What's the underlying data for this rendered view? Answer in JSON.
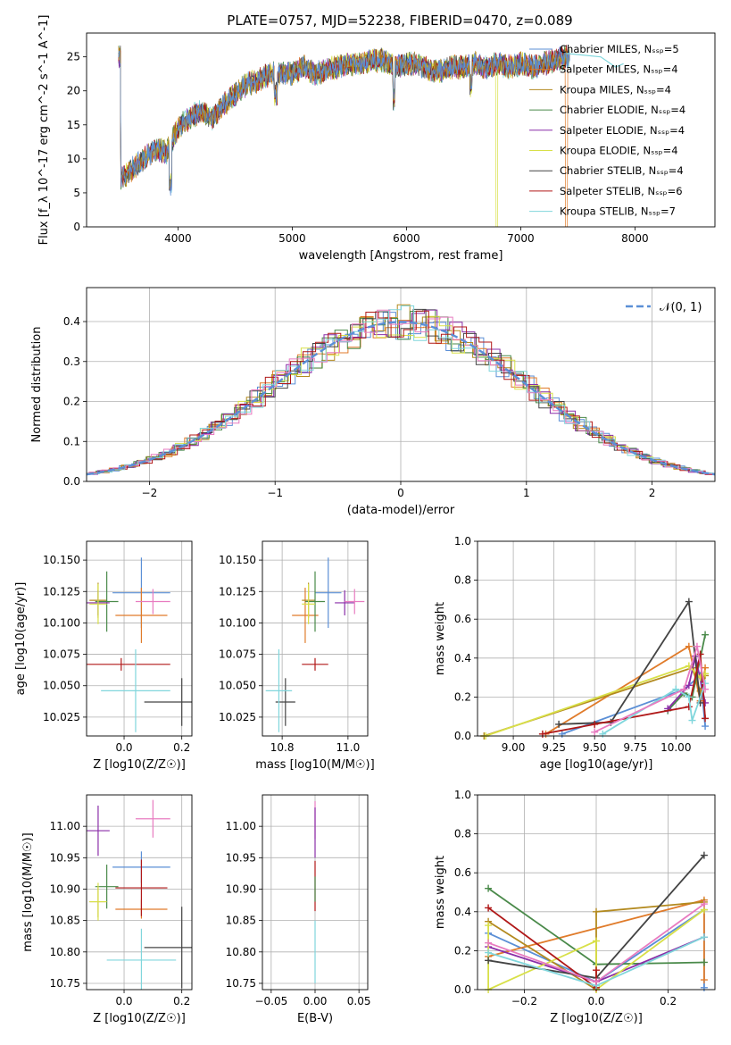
{
  "colors": {
    "chabrier_miles": "#5b8fd6",
    "salpeter_miles": "#e07b2a",
    "kroupa_miles": "#b38a1f",
    "chabrier_elodie": "#4a8a4a",
    "salpeter_elodie": "#8a2ea8",
    "kroupa_elodie": "#d8e048",
    "chabrier_stelib": "#444444",
    "salpeter_stelib": "#b01818",
    "kroupa_stelib": "#80d6dc",
    "pink": "#e87bc0",
    "gaussian": "#5b8fd6"
  },
  "chart_data": [
    {
      "id": "spectrum",
      "type": "line",
      "title": "PLATE=0757, MJD=52238, FIBERID=0470, z=0.089",
      "xlabel": "wavelength [Angstrom, rest frame]",
      "ylabel": "Flux [f_λ 10^-17 erg cm^-2 s^-1 A^-1]",
      "xlim": [
        3200,
        8700
      ],
      "ylim": [
        0,
        28.5
      ],
      "xticks": [
        4000,
        5000,
        6000,
        7000,
        8000
      ],
      "yticks": [
        0,
        5,
        10,
        15,
        20,
        25
      ],
      "legend_position": "upper-right",
      "legend": [
        {
          "label": "Chabrier MILES, N_SSP=5",
          "key": "chabrier_miles"
        },
        {
          "label": "Salpeter MILES, N_SSP=4",
          "key": "salpeter_miles"
        },
        {
          "label": "Kroupa MILES, N_SSP=4",
          "key": "kroupa_miles"
        },
        {
          "label": "Chabrier ELODIE, N_SSP=4",
          "key": "chabrier_elodie"
        },
        {
          "label": "Salpeter ELODIE, N_SSP=4",
          "key": "salpeter_elodie"
        },
        {
          "label": "Kroupa ELODIE, N_SSP=4",
          "key": "kroupa_elodie"
        },
        {
          "label": "Chabrier STELIB, N_SSP=4",
          "key": "chabrier_stelib"
        },
        {
          "label": "Salpeter STELIB, N_SSP=6",
          "key": "salpeter_stelib"
        },
        {
          "label": "Kroupa STELIB, N_SSP=7",
          "key": "kroupa_stelib"
        }
      ],
      "continuum": [
        [
          3500,
          7
        ],
        [
          3600,
          8.5
        ],
        [
          3700,
          10
        ],
        [
          3800,
          11.5
        ],
        [
          3900,
          11
        ],
        [
          4000,
          14.5
        ],
        [
          4100,
          16
        ],
        [
          4200,
          17
        ],
        [
          4300,
          16
        ],
        [
          4400,
          18
        ],
        [
          4500,
          19.5
        ],
        [
          4600,
          21
        ],
        [
          4700,
          21.5
        ],
        [
          4800,
          22.5
        ],
        [
          4900,
          22.5
        ],
        [
          5000,
          22.5
        ],
        [
          5100,
          23.5
        ],
        [
          5200,
          22.5
        ],
        [
          5300,
          23
        ],
        [
          5400,
          23.5
        ],
        [
          5500,
          24
        ],
        [
          5600,
          24
        ],
        [
          5700,
          24.5
        ],
        [
          5800,
          24.5
        ],
        [
          5900,
          23.5
        ],
        [
          6000,
          24
        ],
        [
          6100,
          24
        ],
        [
          6200,
          23
        ],
        [
          6300,
          23
        ],
        [
          6400,
          23.5
        ],
        [
          6500,
          23.5
        ],
        [
          6600,
          24
        ],
        [
          6700,
          23.5
        ],
        [
          6800,
          24
        ],
        [
          6900,
          23.5
        ],
        [
          7000,
          24
        ],
        [
          7100,
          23.5
        ],
        [
          7200,
          24
        ],
        [
          7300,
          24.5
        ],
        [
          7400,
          25
        ]
      ]
    },
    {
      "id": "residuals",
      "type": "line",
      "xlabel": "(data-model)/error",
      "ylabel": "Normed distribution",
      "xlim": [
        -2.5,
        2.5
      ],
      "ylim": [
        0,
        0.485
      ],
      "xticks": [
        -2,
        -1,
        0,
        1,
        2
      ],
      "yticks": [
        0.0,
        0.1,
        0.2,
        0.3,
        0.4
      ],
      "legend_position": "upper-right",
      "legend": [
        {
          "label": "𝒩(0, 1)",
          "key": "gaussian"
        }
      ]
    },
    {
      "id": "age-vs-Z",
      "type": "scatter",
      "xlabel": "Z [log10(Z/Z☉)]",
      "ylabel": "age  [log10(age/yr)]",
      "xlim": [
        -0.13,
        0.235
      ],
      "ylim": [
        10.01,
        10.165
      ],
      "xticks": [
        0.0,
        0.2
      ],
      "yticks": [
        10.025,
        10.05,
        10.075,
        10.1,
        10.125,
        10.15
      ],
      "points": [
        {
          "key": "chabrier_miles",
          "x": 0.06,
          "y": 10.124,
          "xerr": 0.1,
          "yerr": 0.028
        },
        {
          "key": "salpeter_miles",
          "x": 0.06,
          "y": 10.106,
          "xerr": 0.09,
          "yerr": 0.022
        },
        {
          "key": "kroupa_miles",
          "x": -0.09,
          "y": 10.118,
          "xerr": 0.03,
          "yerr": 0.014
        },
        {
          "key": "chabrier_elodie",
          "x": -0.06,
          "y": 10.117,
          "xerr": 0.04,
          "yerr": 0.024
        },
        {
          "key": "salpeter_elodie",
          "x": -0.09,
          "y": 10.116,
          "xerr": 0.04,
          "yerr": 0.01
        },
        {
          "key": "kroupa_elodie",
          "x": -0.09,
          "y": 10.115,
          "xerr": 0.03,
          "yerr": 0.016
        },
        {
          "key": "chabrier_stelib",
          "x": 0.2,
          "y": 10.037,
          "xerr": 0.13,
          "yerr": 0.019
        },
        {
          "key": "salpeter_stelib",
          "x": -0.01,
          "y": 10.067,
          "xerr": 0.17,
          "yerr": 0.005
        },
        {
          "key": "kroupa_stelib",
          "x": 0.04,
          "y": 10.046,
          "xerr": 0.12,
          "yerr": 0.033
        },
        {
          "key": "pink",
          "x": 0.1,
          "y": 10.117,
          "xerr": 0.06,
          "yerr": 0.01
        }
      ]
    },
    {
      "id": "age-vs-mass",
      "type": "scatter",
      "xlabel": "mass [log10(M/M☉)]",
      "ylabel": "",
      "xlim": [
        10.74,
        11.06
      ],
      "ylim": [
        10.01,
        10.165
      ],
      "xticks": [
        10.8,
        11.0
      ],
      "yticks": [
        10.025,
        10.05,
        10.075,
        10.1,
        10.125,
        10.15
      ],
      "points": [
        {
          "key": "chabrier_miles",
          "x": 10.94,
          "y": 10.124,
          "xerr": 0.04,
          "yerr": 0.028
        },
        {
          "key": "salpeter_miles",
          "x": 10.87,
          "y": 10.106,
          "xerr": 0.04,
          "yerr": 0.022
        },
        {
          "key": "kroupa_miles",
          "x": 10.88,
          "y": 10.118,
          "xerr": 0.02,
          "yerr": 0.014
        },
        {
          "key": "chabrier_elodie",
          "x": 10.9,
          "y": 10.117,
          "xerr": 0.03,
          "yerr": 0.024
        },
        {
          "key": "salpeter_elodie",
          "x": 10.99,
          "y": 10.116,
          "xerr": 0.03,
          "yerr": 0.01
        },
        {
          "key": "kroupa_elodie",
          "x": 10.88,
          "y": 10.115,
          "xerr": 0.02,
          "yerr": 0.016
        },
        {
          "key": "chabrier_stelib",
          "x": 10.81,
          "y": 10.037,
          "xerr": 0.03,
          "yerr": 0.019
        },
        {
          "key": "salpeter_stelib",
          "x": 10.9,
          "y": 10.067,
          "xerr": 0.04,
          "yerr": 0.005
        },
        {
          "key": "kroupa_stelib",
          "x": 10.79,
          "y": 10.046,
          "xerr": 0.04,
          "yerr": 0.033
        },
        {
          "key": "pink",
          "x": 11.02,
          "y": 10.117,
          "xerr": 0.03,
          "yerr": 0.01
        }
      ]
    },
    {
      "id": "mass-weight-vs-age",
      "type": "line",
      "xlabel": "age  [log10(age/yr)]",
      "ylabel": "mass weight",
      "xlim": [
        8.78,
        10.24
      ],
      "ylim": [
        0,
        1
      ],
      "xticks": [
        9.0,
        9.25,
        9.5,
        9.75,
        10.0
      ],
      "yticks": [
        0.0,
        0.2,
        0.4,
        0.6,
        0.8,
        1.0
      ],
      "series": [
        {
          "key": "chabrier_miles",
          "x": [
            9.3,
            10.05,
            10.15,
            10.18
          ],
          "y": [
            0.01,
            0.24,
            0.31,
            0.05
          ]
        },
        {
          "key": "salpeter_miles",
          "x": [
            9.2,
            10.08,
            10.15,
            10.18
          ],
          "y": [
            0.01,
            0.46,
            0.18,
            0.35
          ]
        },
        {
          "key": "kroupa_miles",
          "x": [
            8.82,
            10.1,
            10.15,
            10.18
          ],
          "y": [
            0.0,
            0.35,
            0.23,
            0.31
          ]
        },
        {
          "key": "chabrier_elodie",
          "x": [
            9.95,
            10.05,
            10.1,
            10.18
          ],
          "y": [
            0.13,
            0.22,
            0.2,
            0.52
          ]
        },
        {
          "key": "salpeter_elodie",
          "x": [
            9.95,
            10.08,
            10.12,
            10.18
          ],
          "y": [
            0.14,
            0.26,
            0.41,
            0.17
          ]
        },
        {
          "key": "kroupa_elodie",
          "x": [
            8.83,
            10.08,
            10.15,
            10.18
          ],
          "y": [
            0.0,
            0.36,
            0.3,
            0.32
          ]
        },
        {
          "key": "chabrier_stelib",
          "x": [
            9.28,
            9.6,
            10.08,
            10.15
          ],
          "y": [
            0.06,
            0.07,
            0.69,
            0.17
          ]
        },
        {
          "key": "salpeter_stelib",
          "x": [
            9.18,
            9.5,
            10.08,
            10.15,
            10.18
          ],
          "y": [
            0.01,
            0.06,
            0.15,
            0.42,
            0.09
          ]
        },
        {
          "key": "kroupa_stelib",
          "x": [
            9.55,
            10.0,
            10.08,
            10.1,
            10.18
          ],
          "y": [
            0.01,
            0.24,
            0.2,
            0.08,
            0.27
          ]
        },
        {
          "key": "pink",
          "x": [
            9.5,
            10.05,
            10.13,
            10.18
          ],
          "y": [
            0.02,
            0.24,
            0.46,
            0.24
          ]
        }
      ]
    },
    {
      "id": "mass-vs-Z",
      "type": "scatter",
      "xlabel": "Z [log10(Z/Z☉)]",
      "ylabel": "mass [log10(M/M☉)]",
      "xlim": [
        -0.13,
        0.235
      ],
      "ylim": [
        10.74,
        11.05
      ],
      "xticks": [
        0.0,
        0.2
      ],
      "yticks": [
        10.75,
        10.8,
        10.85,
        10.9,
        10.95,
        11.0
      ],
      "points": [
        {
          "key": "chabrier_miles",
          "x": 0.06,
          "y": 10.935,
          "xerr": 0.1,
          "yerr": 0.025
        },
        {
          "key": "salpeter_miles",
          "x": 0.06,
          "y": 10.868,
          "xerr": 0.09,
          "yerr": 0.015
        },
        {
          "key": "kroupa_miles",
          "x": -0.09,
          "y": 10.88,
          "xerr": 0.03,
          "yerr": 0.025
        },
        {
          "key": "chabrier_elodie",
          "x": -0.06,
          "y": 10.904,
          "xerr": 0.04,
          "yerr": 0.035
        },
        {
          "key": "salpeter_elodie",
          "x": -0.09,
          "y": 10.993,
          "xerr": 0.04,
          "yerr": 0.04
        },
        {
          "key": "kroupa_elodie",
          "x": -0.09,
          "y": 10.88,
          "xerr": 0.03,
          "yerr": 0.03
        },
        {
          "key": "chabrier_stelib",
          "x": 0.2,
          "y": 10.807,
          "xerr": 0.13,
          "yerr": 0.065
        },
        {
          "key": "salpeter_stelib",
          "x": 0.06,
          "y": 10.902,
          "xerr": 0.09,
          "yerr": 0.045
        },
        {
          "key": "kroupa_stelib",
          "x": 0.06,
          "y": 10.787,
          "xerr": 0.12,
          "yerr": 0.05
        },
        {
          "key": "pink",
          "x": 0.1,
          "y": 11.012,
          "xerr": 0.06,
          "yerr": 0.03
        }
      ]
    },
    {
      "id": "mass-vs-EBV",
      "type": "scatter",
      "xlabel": "E(B-V)",
      "ylabel": "",
      "xlim": [
        -0.06,
        0.06
      ],
      "ylim": [
        10.74,
        11.05
      ],
      "xticks": [
        -0.05,
        0.0,
        0.05
      ],
      "yticks": [
        10.75,
        10.8,
        10.85,
        10.9,
        10.95,
        11.0
      ],
      "points": [
        {
          "key": "pink",
          "x": 0,
          "y": 11.01,
          "xerr": 0,
          "yerr": 0.03
        },
        {
          "key": "salpeter_elodie",
          "x": 0,
          "y": 10.99,
          "xerr": 0,
          "yerr": 0.04
        },
        {
          "key": "salpeter_stelib",
          "x": 0,
          "y": 10.905,
          "xerr": 0,
          "yerr": 0.04
        },
        {
          "key": "kroupa_stelib",
          "x": 0,
          "y": 10.8,
          "xerr": 0,
          "yerr": 0.05
        },
        {
          "key": "chabrier_elodie",
          "x": 0,
          "y": 10.9,
          "xerr": 0,
          "yerr": 0.02
        }
      ]
    },
    {
      "id": "mass-weight-vs-Z",
      "type": "line",
      "xlabel": "Z [log10(Z/Z☉)]",
      "ylabel": "mass weight",
      "xlim": [
        -0.33,
        0.33
      ],
      "ylim": [
        0,
        1
      ],
      "xticks": [
        -0.2,
        0.0,
        0.2
      ],
      "yticks": [
        0.0,
        0.2,
        0.4,
        0.6,
        0.8,
        1.0
      ],
      "series": [
        {
          "key": "chabrier_miles",
          "x": [
            -0.3,
            0.0,
            0.3,
            0.3
          ],
          "y": [
            0.29,
            0.04,
            0.41,
            0.01
          ]
        },
        {
          "key": "salpeter_miles",
          "x": [
            -0.3,
            0.3,
            0.3
          ],
          "y": [
            0.17,
            0.46,
            0.05
          ]
        },
        {
          "key": "kroupa_miles",
          "x": [
            -0.3,
            0.0,
            0.0,
            0.3
          ],
          "y": [
            0.35,
            0.0,
            0.4,
            0.45
          ]
        },
        {
          "key": "chabrier_elodie",
          "x": [
            -0.3,
            0.0,
            0.3
          ],
          "y": [
            0.52,
            0.13,
            0.14
          ]
        },
        {
          "key": "salpeter_elodie",
          "x": [
            -0.3,
            0.0,
            0.3
          ],
          "y": [
            0.22,
            0.04,
            0.27
          ]
        },
        {
          "key": "kroupa_elodie",
          "x": [
            -0.3,
            -0.3,
            0.0,
            0.0,
            0.3
          ],
          "y": [
            0.33,
            0.0,
            0.25,
            0.0,
            0.41
          ]
        },
        {
          "key": "chabrier_stelib",
          "x": [
            -0.3,
            0.0,
            0.3
          ],
          "y": [
            0.15,
            0.06,
            0.69
          ]
        },
        {
          "key": "salpeter_stelib",
          "x": [
            -0.3,
            0.0,
            0.0
          ],
          "y": [
            0.42,
            0.01,
            0.1
          ]
        },
        {
          "key": "kroupa_stelib",
          "x": [
            -0.3,
            0.0,
            0.3
          ],
          "y": [
            0.19,
            0.02,
            0.27
          ]
        },
        {
          "key": "pink",
          "x": [
            -0.3,
            0.0,
            0.3
          ],
          "y": [
            0.24,
            0.04,
            0.44
          ]
        }
      ]
    }
  ]
}
